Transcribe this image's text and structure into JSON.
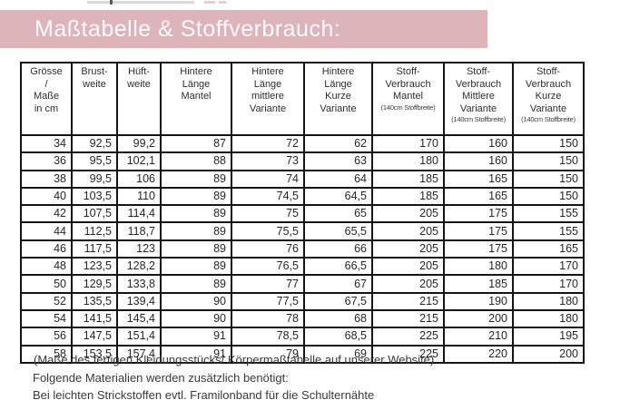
{
  "colors": {
    "banner_bg": "#dcb4b9",
    "banner_text": "#fcfafa",
    "table_border": "#141414",
    "body_text": "#2e2e2e"
  },
  "banner": {
    "title": "Maßtabelle & Stoffverbrauch:"
  },
  "table": {
    "header": [
      {
        "lines": [
          "Grösse",
          "/",
          "Maße",
          "in cm"
        ],
        "small": ""
      },
      {
        "lines": [
          "Brust-",
          "weite"
        ],
        "small": ""
      },
      {
        "lines": [
          "Hüft-",
          "weite"
        ],
        "small": ""
      },
      {
        "lines": [
          "Hintere",
          "Länge",
          "Mantel"
        ],
        "small": ""
      },
      {
        "lines": [
          "Hintere",
          "Länge",
          "mittlere",
          "Variante"
        ],
        "small": ""
      },
      {
        "lines": [
          "Hintere",
          "Länge",
          "Kurze",
          "Variante"
        ],
        "small": ""
      },
      {
        "lines": [
          "Stoff-",
          "Verbrauch",
          "Mantel"
        ],
        "small": "(140cm Stoffbreite)"
      },
      {
        "lines": [
          "Stoff-",
          "Verbrauch",
          "Mittlere",
          "Variante"
        ],
        "small": "(140cm Stoffbreite)"
      },
      {
        "lines": [
          "Stoff-",
          "Verbrauch",
          "Kurze",
          "Variante"
        ],
        "small": "(140cm Stoffbreite)"
      }
    ],
    "rows": [
      [
        "34",
        "92,5",
        "99,2",
        "87",
        "72",
        "62",
        "170",
        "160",
        "150"
      ],
      [
        "36",
        "95,5",
        "102,1",
        "88",
        "73",
        "63",
        "180",
        "160",
        "150"
      ],
      [
        "38",
        "99,5",
        "106",
        "89",
        "74",
        "64",
        "185",
        "165",
        "150"
      ],
      [
        "40",
        "103,5",
        "110",
        "89",
        "74,5",
        "64,5",
        "185",
        "165",
        "150"
      ],
      [
        "42",
        "107,5",
        "114,4",
        "89",
        "75",
        "65",
        "205",
        "175",
        "155"
      ],
      [
        "44",
        "112,5",
        "118,7",
        "89",
        "75,5",
        "65,5",
        "205",
        "175",
        "155"
      ],
      [
        "46",
        "117,5",
        "123",
        "89",
        "76",
        "66",
        "205",
        "175",
        "165"
      ],
      [
        "48",
        "123,5",
        "128,2",
        "89",
        "76,5",
        "66,5",
        "205",
        "180",
        "170"
      ],
      [
        "50",
        "129,5",
        "133,8",
        "89",
        "77",
        "67",
        "205",
        "185",
        "170"
      ],
      [
        "52",
        "135,5",
        "139,4",
        "90",
        "77,5",
        "67,5",
        "215",
        "190",
        "180"
      ],
      [
        "54",
        "141,5",
        "145,4",
        "90",
        "78",
        "68",
        "215",
        "200",
        "180"
      ],
      [
        "56",
        "147,5",
        "151,4",
        "91",
        "78,5",
        "68,5",
        "225",
        "210",
        "195"
      ],
      [
        "58",
        "153,5",
        "157,4",
        "91",
        "79",
        "69",
        "225",
        "220",
        "200"
      ]
    ]
  },
  "footnote": "(Maße des fertigen Kleidungsstücks/ Körpermaßtabelle auf unserer Website)",
  "materials": {
    "heading": "Folgende Materialien werden zusätzlich benötigt:",
    "note": "Bei leichten Strickstoffen evtl. Framilonband für die Schulternähte"
  }
}
